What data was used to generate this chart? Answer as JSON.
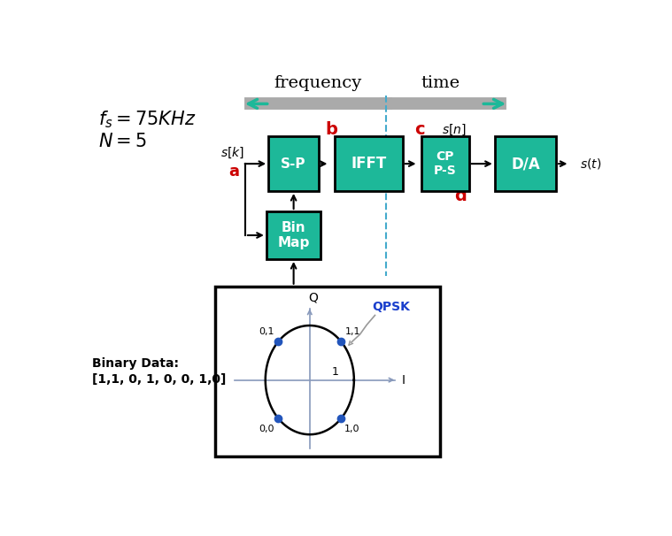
{
  "fig_width": 7.59,
  "fig_height": 6.06,
  "bg_color": "#ffffff",
  "teal_color": "#1db899",
  "red_color": "#cc0000",
  "blue_label_color": "#1a3fcc",
  "black": "#000000",
  "gray_axis": "#8899bb",
  "freq_label": "frequency",
  "time_label": "time",
  "qpsk_point_labels": [
    "0,1",
    "1,1",
    "0,0",
    "1,0"
  ],
  "binary_data_label": "Binary Data:\n[1,1, 0, 1, 0, 0, 1,0]",
  "qpsk_label": "QPSK",
  "q_label": "Q",
  "i_label": "I"
}
